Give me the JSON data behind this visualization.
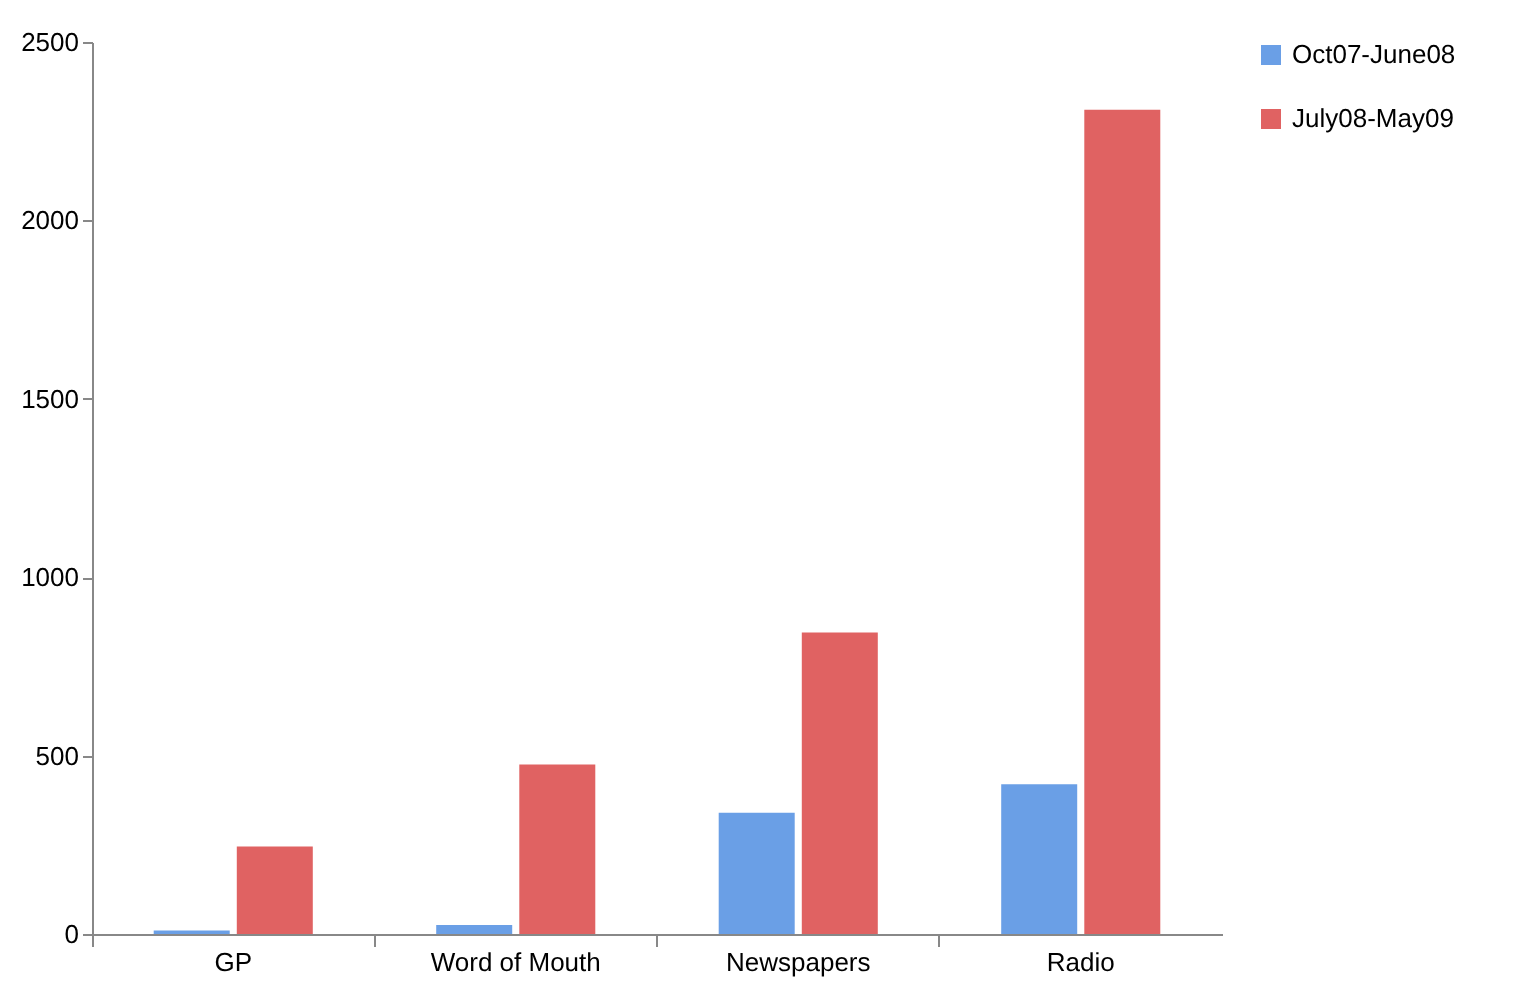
{
  "chart_data": {
    "type": "bar",
    "categories": [
      "GP",
      "Word of Mouth",
      "Newspapers",
      "Radio"
    ],
    "series": [
      {
        "name": "Oct07-June08",
        "color": "#6a9fe6",
        "values": [
          10,
          25,
          340,
          420
        ]
      },
      {
        "name": "July08-May09",
        "color": "#e06262",
        "values": [
          245,
          475,
          845,
          2310
        ]
      }
    ],
    "ylim": [
      0,
      2500
    ],
    "yticks": [
      0,
      500,
      1000,
      1500,
      2000,
      2500
    ],
    "grid": false,
    "legend": "right"
  }
}
